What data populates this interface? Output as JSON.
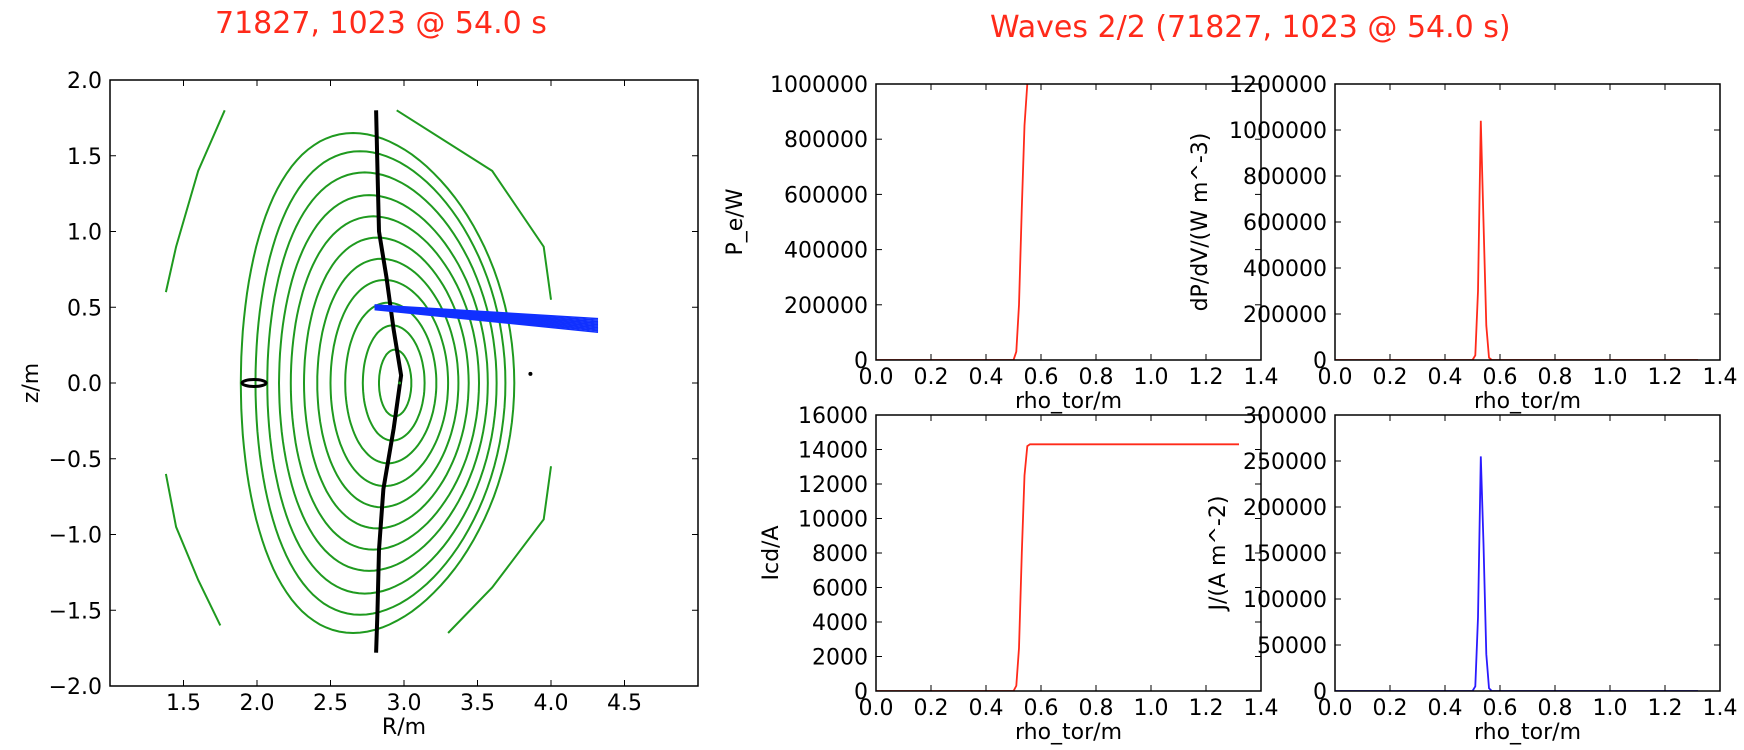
{
  "titles": {
    "left": "71827, 1023 @ 54.0 s",
    "right": "Waves 2/2 (71827, 1023 @ 54.0 s)"
  },
  "colors": {
    "title": "#ff2a1a",
    "flux": "#1f9a1f",
    "ray": "#1030ff",
    "red_line": "#ff2a1a",
    "blue_line": "#2a1aff"
  },
  "chart_data": [
    {
      "id": "equilibrium",
      "type": "line",
      "title": "71827, 1023 @ 54.0 s",
      "xlabel": "R/m",
      "ylabel": "z/m",
      "xlim": [
        1.0,
        5.0
      ],
      "ylim": [
        -2.0,
        2.0
      ],
      "xticks": [
        "1.5",
        "2.0",
        "2.5",
        "3.0",
        "3.5",
        "4.0",
        "4.5"
      ],
      "yticks": [
        "2.0",
        "1.5",
        "1.0",
        "0.5",
        "0.0",
        "−0.5",
        "−1.0",
        "−1.5",
        "−2.0"
      ],
      "flux_surfaces": [
        {
          "R0": 2.94,
          "Z0": 0.0,
          "a": 0.11,
          "b": 0.22
        },
        {
          "R0": 2.93,
          "Z0": 0.0,
          "a": 0.21,
          "b": 0.38
        },
        {
          "R0": 2.91,
          "Z0": 0.0,
          "a": 0.31,
          "b": 0.53
        },
        {
          "R0": 2.9,
          "Z0": 0.0,
          "a": 0.4,
          "b": 0.68
        },
        {
          "R0": 2.89,
          "Z0": 0.0,
          "a": 0.48,
          "b": 0.82
        },
        {
          "R0": 2.88,
          "Z0": 0.0,
          "a": 0.56,
          "b": 0.96
        },
        {
          "R0": 2.87,
          "Z0": 0.0,
          "a": 0.64,
          "b": 1.1
        },
        {
          "R0": 2.86,
          "Z0": 0.0,
          "a": 0.71,
          "b": 1.24
        },
        {
          "R0": 2.85,
          "Z0": 0.0,
          "a": 0.78,
          "b": 1.39
        },
        {
          "R0": 2.84,
          "Z0": 0.0,
          "a": 0.85,
          "b": 1.53
        },
        {
          "R0": 2.82,
          "Z0": 0.0,
          "a": 0.93,
          "b": 1.65
        }
      ],
      "open_lines": [
        {
          "name": "left-upper",
          "points": [
            [
              1.78,
              1.8
            ],
            [
              1.6,
              1.4
            ],
            [
              1.45,
              0.9
            ],
            [
              1.38,
              0.6
            ]
          ]
        },
        {
          "name": "left-lower",
          "points": [
            [
              1.38,
              -0.6
            ],
            [
              1.45,
              -0.95
            ],
            [
              1.6,
              -1.3
            ],
            [
              1.75,
              -1.6
            ]
          ]
        },
        {
          "name": "right-upper",
          "points": [
            [
              2.95,
              1.8
            ],
            [
              3.6,
              1.4
            ],
            [
              3.95,
              0.9
            ],
            [
              4.0,
              0.55
            ]
          ]
        },
        {
          "name": "right-lower",
          "points": [
            [
              4.0,
              -0.55
            ],
            [
              3.95,
              -0.9
            ],
            [
              3.6,
              -1.35
            ],
            [
              3.3,
              -1.65
            ]
          ]
        }
      ],
      "magnetic_axis_line": [
        [
          2.81,
          1.8
        ],
        [
          2.82,
          1.4
        ],
        [
          2.83,
          1.0
        ],
        [
          2.88,
          0.7
        ],
        [
          2.93,
          0.35
        ],
        [
          2.98,
          0.05
        ],
        [
          2.93,
          -0.3
        ],
        [
          2.86,
          -0.7
        ],
        [
          2.83,
          -1.1
        ],
        [
          2.82,
          -1.5
        ],
        [
          2.81,
          -1.78
        ]
      ],
      "x_point_left": {
        "R": 1.98,
        "Z": 0.0
      },
      "x_point_right": {
        "R": 3.86,
        "Z": 0.06
      },
      "ray_bundle": {
        "start": [
          2.8,
          0.5
        ],
        "end": [
          4.32,
          0.38
        ],
        "spread_start": 0.03,
        "spread_end": 0.09,
        "n_rays": 10
      }
    },
    {
      "id": "power",
      "type": "line",
      "xlabel": "rho_tor/m",
      "ylabel": "P_e/W",
      "xlim": [
        0.0,
        1.4
      ],
      "ylim": [
        0,
        1000000
      ],
      "xticks": [
        "0.0",
        "0.2",
        "0.4",
        "0.6",
        "0.8",
        "1.0",
        "1.2",
        "1.4"
      ],
      "yticks": [
        "0",
        "200000",
        "400000",
        "600000",
        "800000",
        "1000000"
      ],
      "series": [
        {
          "color": "#ff2a1a",
          "x": [
            0.0,
            0.5,
            0.51,
            0.52,
            0.53,
            0.54,
            0.55
          ],
          "y": [
            0,
            0,
            30000,
            200000,
            550000,
            850000,
            1000000
          ]
        }
      ]
    },
    {
      "id": "power_density",
      "type": "line",
      "xlabel": "rho_tor/m",
      "ylabel": "dP/dV/(W m^-3)",
      "xlim": [
        0.0,
        1.4
      ],
      "ylim": [
        0,
        1200000
      ],
      "xticks": [
        "0.0",
        "0.2",
        "0.4",
        "0.6",
        "0.8",
        "1.0",
        "1.2",
        "1.4"
      ],
      "yticks": [
        "0",
        "200000",
        "400000",
        "600000",
        "800000",
        "1000000",
        "1200000"
      ],
      "series": [
        {
          "color": "#ff2a1a",
          "x": [
            0.0,
            0.5,
            0.51,
            0.52,
            0.53,
            0.54,
            0.55,
            0.56,
            0.57,
            1.32
          ],
          "y": [
            0,
            0,
            20000,
            300000,
            1040000,
            600000,
            150000,
            10000,
            0,
            0
          ]
        }
      ]
    },
    {
      "id": "current",
      "type": "line",
      "xlabel": "rho_tor/m",
      "ylabel": "Icd/A",
      "xlim": [
        0.0,
        1.4
      ],
      "ylim": [
        0,
        16000
      ],
      "xticks": [
        "0.0",
        "0.2",
        "0.4",
        "0.6",
        "0.8",
        "1.0",
        "1.2",
        "1.4"
      ],
      "yticks": [
        "0",
        "2000",
        "4000",
        "6000",
        "8000",
        "10000",
        "12000",
        "14000",
        "16000"
      ],
      "series": [
        {
          "color": "#ff2a1a",
          "x": [
            0.0,
            0.5,
            0.51,
            0.52,
            0.53,
            0.54,
            0.55,
            0.56,
            1.32
          ],
          "y": [
            0,
            0,
            300,
            2500,
            8000,
            12500,
            14200,
            14300,
            14300
          ]
        }
      ]
    },
    {
      "id": "current_density",
      "type": "line",
      "xlabel": "rho_tor/m",
      "ylabel": "J/(A m^-2)",
      "xlim": [
        0.0,
        1.4
      ],
      "ylim": [
        0,
        300000
      ],
      "xticks": [
        "0.0",
        "0.2",
        "0.4",
        "0.6",
        "0.8",
        "1.0",
        "1.2",
        "1.4"
      ],
      "yticks": [
        "0",
        "50000",
        "100000",
        "150000",
        "200000",
        "250000",
        "300000"
      ],
      "series": [
        {
          "color": "#2a1aff",
          "x": [
            0.0,
            0.5,
            0.51,
            0.52,
            0.53,
            0.54,
            0.55,
            0.56,
            0.57,
            1.32
          ],
          "y": [
            0,
            0,
            5000,
            80000,
            255000,
            160000,
            40000,
            3000,
            0,
            0
          ]
        }
      ]
    }
  ]
}
